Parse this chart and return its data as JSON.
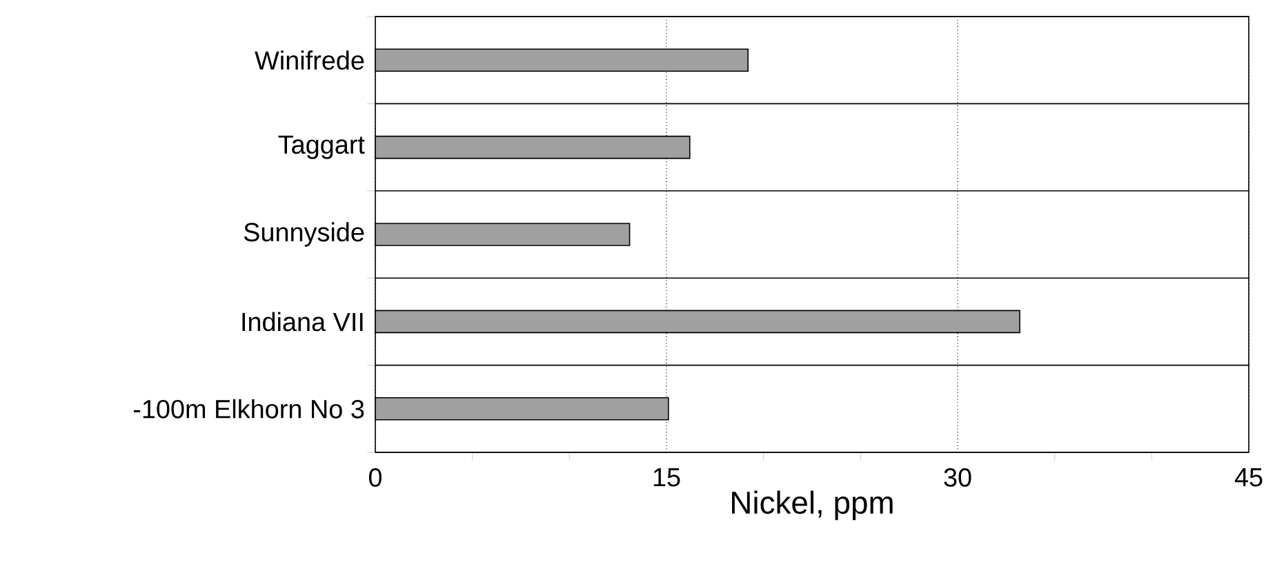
{
  "chart_data": {
    "type": "bar",
    "orientation": "horizontal",
    "xlabel": "Nickel, ppm",
    "categories": [
      "Winifrede",
      "Taggart",
      "Sunnyside",
      "Indiana VII",
      "-100m Elkhorn No 3"
    ],
    "values": [
      19.2,
      16.2,
      13.1,
      33.2,
      15.1
    ],
    "color": "#a0a0a0",
    "xlim": [
      0,
      45
    ],
    "xticks": [
      0,
      15,
      30,
      45
    ],
    "grid": true
  }
}
